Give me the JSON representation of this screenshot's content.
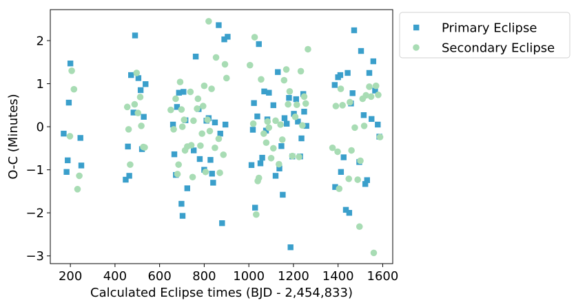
{
  "chart_data": {
    "type": "scatter",
    "xlabel": "Calculated Eclipse times (BJD - 2,454,833)",
    "ylabel": "O-C (Minutes)",
    "xlim": [
      110,
      1645
    ],
    "ylim": [
      -3.18,
      2.72
    ],
    "xticks": [
      200,
      400,
      600,
      800,
      1000,
      1200,
      1400,
      1600
    ],
    "xtick_labels": [
      "200",
      "400",
      "600",
      "800",
      "1000",
      "1200",
      "1400",
      "1600"
    ],
    "yticks": [
      -3,
      -2,
      -1,
      0,
      1,
      2
    ],
    "ytick_labels": [
      "−3",
      "−2",
      "−1",
      "0",
      "1",
      "2"
    ],
    "grid": false,
    "legend": "outside-top-right",
    "series": [
      {
        "name": "Primary Eclipse",
        "marker": "square",
        "color": "#3a9fcb",
        "points": [
          [
            170,
            -0.16
          ],
          [
            183,
            -1.05
          ],
          [
            188,
            -0.78
          ],
          [
            193,
            0.56
          ],
          [
            200,
            1.47
          ],
          [
            245,
            -0.26
          ],
          [
            249,
            -0.9
          ],
          [
            448,
            -1.23
          ],
          [
            458,
            -0.46
          ],
          [
            464,
            -1.14
          ],
          [
            472,
            1.2
          ],
          [
            483,
            0.33
          ],
          [
            490,
            2.12
          ],
          [
            505,
            1.13
          ],
          [
            515,
            0.85
          ],
          [
            521,
            -0.52
          ],
          [
            529,
            0.23
          ],
          [
            537,
            0.99
          ],
          [
            660,
            0.05
          ],
          [
            666,
            -0.64
          ],
          [
            673,
            -1.12
          ],
          [
            678,
            0.46
          ],
          [
            687,
            0.79
          ],
          [
            698,
            -1.79
          ],
          [
            703,
            -2.07
          ],
          [
            707,
            0.81
          ],
          [
            716,
            0.15
          ],
          [
            724,
            -1.43
          ],
          [
            753,
            -0.55
          ],
          [
            762,
            1.63
          ],
          [
            775,
            0.41
          ],
          [
            780,
            -0.75
          ],
          [
            800,
            -1.0
          ],
          [
            810,
            0.14
          ],
          [
            820,
            0.2
          ],
          [
            828,
            -0.77
          ],
          [
            835,
            -1.09
          ],
          [
            840,
            -1.3
          ],
          [
            848,
            0.1
          ],
          [
            865,
            2.36
          ],
          [
            872,
            -0.16
          ],
          [
            880,
            -2.24
          ],
          [
            890,
            2.03
          ],
          [
            895,
            0.05
          ],
          [
            905,
            2.09
          ],
          [
            1012,
            -0.89
          ],
          [
            1018,
            -0.07
          ],
          [
            1023,
            0.55
          ],
          [
            1028,
            -1.88
          ],
          [
            1038,
            0.24
          ],
          [
            1045,
            1.92
          ],
          [
            1052,
            -0.85
          ],
          [
            1060,
            -0.72
          ],
          [
            1069,
            0.82
          ],
          [
            1077,
            -0.09
          ],
          [
            1083,
            0.17
          ],
          [
            1090,
            0.79
          ],
          [
            1110,
            0.5
          ],
          [
            1120,
            -1.14
          ],
          [
            1130,
            1.27
          ],
          [
            1137,
            -0.97
          ],
          [
            1146,
            -0.45
          ],
          [
            1152,
            -1.58
          ],
          [
            1160,
            0.2
          ],
          [
            1170,
            0.07
          ],
          [
            1180,
            0.67
          ],
          [
            1187,
            -2.8
          ],
          [
            1195,
            -0.69
          ],
          [
            1202,
            0.3
          ],
          [
            1212,
            0.64
          ],
          [
            1220,
            0.12
          ],
          [
            1230,
            -0.69
          ],
          [
            1236,
            -0.27
          ],
          [
            1244,
            0.76
          ],
          [
            1248,
            0.35
          ],
          [
            1258,
            0.02
          ],
          [
            1385,
            0.97
          ],
          [
            1387,
            -1.4
          ],
          [
            1400,
            1.15
          ],
          [
            1410,
            1.2
          ],
          [
            1413,
            -1.05
          ],
          [
            1425,
            -0.71
          ],
          [
            1435,
            -1.93
          ],
          [
            1443,
            1.25
          ],
          [
            1450,
            -2.0
          ],
          [
            1458,
            0.54
          ],
          [
            1465,
            0.78
          ],
          [
            1472,
            2.24
          ],
          [
            1495,
            -0.82
          ],
          [
            1503,
            1.76
          ],
          [
            1515,
            0.27
          ],
          [
            1522,
            -1.33
          ],
          [
            1530,
            -1.24
          ],
          [
            1540,
            1.25
          ],
          [
            1550,
            0.18
          ],
          [
            1558,
            1.52
          ],
          [
            1566,
            0.84
          ],
          [
            1578,
            0.05
          ],
          [
            1585,
            -0.23
          ]
        ]
      },
      {
        "name": "Secondary Eclipse",
        "marker": "circle",
        "color": "#a8dcb4",
        "points": [
          [
            198,
            -0.22
          ],
          [
            206,
            1.3
          ],
          [
            216,
            0.87
          ],
          [
            232,
            -1.45
          ],
          [
            240,
            -1.14
          ],
          [
            455,
            0.46
          ],
          [
            461,
            -0.06
          ],
          [
            468,
            -0.88
          ],
          [
            488,
            0.52
          ],
          [
            497,
            1.25
          ],
          [
            503,
            0.32
          ],
          [
            513,
            0.69
          ],
          [
            518,
            0.02
          ],
          [
            527,
            -0.47
          ],
          [
            533,
            -0.48
          ],
          [
            650,
            0.39
          ],
          [
            663,
            -0.06
          ],
          [
            672,
            0.65
          ],
          [
            680,
            -1.1
          ],
          [
            685,
            -0.88
          ],
          [
            692,
            1.04
          ],
          [
            698,
            0.4
          ],
          [
            702,
            0.0
          ],
          [
            710,
            0.16
          ],
          [
            714,
            -0.55
          ],
          [
            724,
            -0.46
          ],
          [
            738,
            0.81
          ],
          [
            742,
            -0.43
          ],
          [
            748,
            -1.17
          ],
          [
            752,
            0.14
          ],
          [
            768,
            0.42
          ],
          [
            772,
            0.65
          ],
          [
            783,
            -0.44
          ],
          [
            790,
            -0.16
          ],
          [
            795,
            0.48
          ],
          [
            800,
            0.95
          ],
          [
            806,
            -1.05
          ],
          [
            815,
            0.16
          ],
          [
            820,
            2.45
          ],
          [
            825,
            -0.1
          ],
          [
            833,
            0.88
          ],
          [
            848,
            -0.49
          ],
          [
            853,
            1.61
          ],
          [
            865,
            -0.28
          ],
          [
            870,
            -1.07
          ],
          [
            886,
            -0.65
          ],
          [
            893,
            1.45
          ],
          [
            900,
            1.13
          ],
          [
            1005,
            1.43
          ],
          [
            1020,
            0.07
          ],
          [
            1026,
            2.08
          ],
          [
            1033,
            -2.04
          ],
          [
            1040,
            -1.26
          ],
          [
            1045,
            -1.19
          ],
          [
            1055,
            1.1
          ],
          [
            1067,
            -0.16
          ],
          [
            1078,
            -0.37
          ],
          [
            1084,
            0.12
          ],
          [
            1090,
            -0.02
          ],
          [
            1100,
            -0.73
          ],
          [
            1110,
            -0.5
          ],
          [
            1120,
            0.14
          ],
          [
            1135,
            -0.87
          ],
          [
            1142,
            0.05
          ],
          [
            1150,
            -0.3
          ],
          [
            1158,
            1.08
          ],
          [
            1168,
            1.33
          ],
          [
            1176,
            0.52
          ],
          [
            1183,
            0.82
          ],
          [
            1195,
            -0.68
          ],
          [
            1208,
            0.23
          ],
          [
            1215,
            0.51
          ],
          [
            1225,
            -0.7
          ],
          [
            1233,
            1.29
          ],
          [
            1240,
            0.03
          ],
          [
            1248,
            0.7
          ],
          [
            1255,
            0.54
          ],
          [
            1265,
            1.8
          ],
          [
            1375,
            -0.49
          ],
          [
            1390,
            0.48
          ],
          [
            1398,
            -0.58
          ],
          [
            1405,
            -1.44
          ],
          [
            1412,
            0.88
          ],
          [
            1420,
            0.5
          ],
          [
            1448,
            -1.21
          ],
          [
            1453,
            0.57
          ],
          [
            1460,
            -0.55
          ],
          [
            1475,
            -0.02
          ],
          [
            1488,
            -1.23
          ],
          [
            1496,
            -2.32
          ],
          [
            1500,
            -0.79
          ],
          [
            1510,
            0.65
          ],
          [
            1517,
            0.02
          ],
          [
            1525,
            0.73
          ],
          [
            1540,
            0.93
          ],
          [
            1548,
            0.7
          ],
          [
            1560,
            -2.93
          ],
          [
            1570,
            0.95
          ],
          [
            1580,
            0.74
          ],
          [
            1588,
            -0.24
          ]
        ]
      }
    ]
  }
}
